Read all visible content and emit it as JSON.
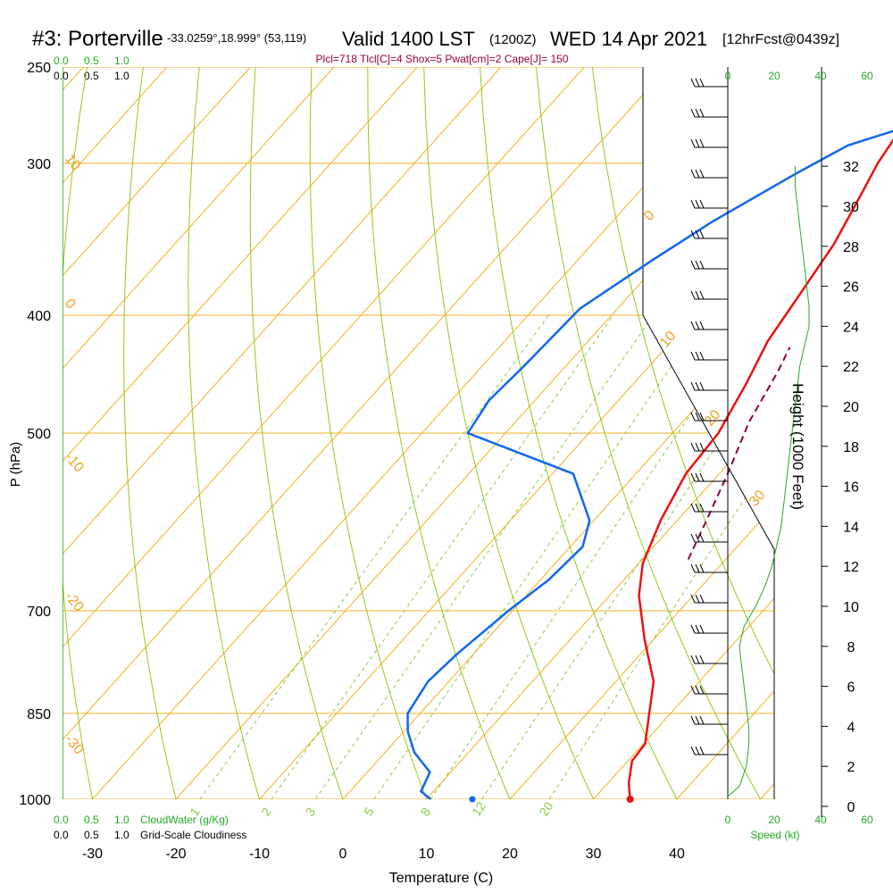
{
  "title": {
    "station": "#3: Porterville",
    "coords": "-33.0259°,18.999° (53,119)",
    "valid": "Valid 1400 LST",
    "utc": "(1200Z)",
    "date": "WED 14 Apr 2021",
    "forecast": "[12hrFcst@0439z]"
  },
  "indices": "Plcl=718 Tlcl[C]=4 Shox=5 Pwat[cm]=2 Cape[J]= 150",
  "colors": {
    "temp": "#ee1111",
    "dewpoint": "#1166ee",
    "parcel": "#880044",
    "isotherm": "#f0b020",
    "dry_adiabat": "#90c820",
    "mixing_ratio": "#88cc44",
    "green_text": "#22aa22",
    "indices": "#990033"
  },
  "chart_data": {
    "type": "line",
    "xlabel": "Temperature (C)",
    "ylabel": "P (hPa)",
    "y2label": "Height (1000 Feet)",
    "x_ticks": [
      "-30",
      "-20",
      "-10",
      "0",
      "10",
      "20",
      "30",
      "40"
    ],
    "y_ticks": [
      "250",
      "300",
      "400",
      "500",
      "700",
      "850",
      "1000"
    ],
    "height_ticks": [
      "0",
      "2",
      "4",
      "6",
      "8",
      "10",
      "12",
      "14",
      "16",
      "18",
      "20",
      "22",
      "24",
      "26",
      "28",
      "30",
      "32"
    ],
    "xlim": [
      -35,
      44
    ],
    "ylim": [
      1000,
      250
    ],
    "series": [
      {
        "key": "temperature",
        "values": [
          [
            34.4,
            1000
          ],
          [
            32.5,
            970
          ],
          [
            30.5,
            930
          ],
          [
            30.2,
            900
          ],
          [
            28,
            860
          ],
          [
            24.5,
            800
          ],
          [
            19,
            740
          ],
          [
            13.5,
            680
          ],
          [
            10.5,
            640
          ],
          [
            8,
            590
          ],
          [
            6,
            540
          ],
          [
            5.5,
            500
          ],
          [
            3.5,
            455
          ],
          [
            1.5,
            420
          ],
          [
            0.5,
            390
          ],
          [
            -1,
            350
          ],
          [
            -3,
            320
          ],
          [
            -4.5,
            300
          ],
          [
            -5.5,
            280
          ],
          [
            -6.5,
            262
          ]
        ]
      },
      {
        "key": "dewpoint",
        "values": [
          [
            10.5,
            1000
          ],
          [
            8.5,
            985
          ],
          [
            7.5,
            950
          ],
          [
            3.5,
            915
          ],
          [
            0.5,
            880
          ],
          [
            -1.5,
            850
          ],
          [
            -2.5,
            800
          ],
          [
            -2,
            760
          ],
          [
            -1,
            720
          ],
          [
            -0.5,
            700
          ],
          [
            1,
            660
          ],
          [
            1.5,
            620
          ],
          [
            -0.5,
            590
          ],
          [
            -7.5,
            540
          ],
          [
            -24.5,
            500
          ],
          [
            -25.5,
            470
          ],
          [
            -25,
            440
          ],
          [
            -24.5,
            395
          ],
          [
            -21,
            360
          ],
          [
            -18,
            335
          ],
          [
            -13,
            305
          ],
          [
            -10,
            290
          ],
          [
            -6,
            282
          ],
          [
            -4,
            262
          ]
        ]
      },
      {
        "key": "parcel",
        "values": [
          [
            15.5,
            635
          ],
          [
            13.5,
            590
          ],
          [
            11,
            540
          ],
          [
            8,
            490
          ],
          [
            6,
            445
          ],
          [
            4.8,
            425
          ]
        ]
      }
    ],
    "surface_dewpoint": 15.5,
    "isotherm_labels": [
      "10",
      "0",
      "-10",
      "-20",
      "-30"
    ],
    "isotherm_right_labels": [
      "0",
      "10",
      "20",
      "30"
    ],
    "mixing_ratio_labels": [
      "1",
      "2",
      "3",
      "5",
      "8",
      "12",
      "20"
    ],
    "mixing_ratio_values": [
      1,
      2,
      3,
      5,
      8,
      12,
      20
    ],
    "legend_top": {
      "cloud_water": [
        "0.0",
        "0.5",
        "1.0"
      ],
      "cloudiness": [
        "0.0",
        "0.5",
        "1.0"
      ]
    },
    "legend_bottom": {
      "cloud_water": [
        "0.0",
        "0.5",
        "1.0"
      ],
      "cloud_water_label": "CloudWater (g/Kg)",
      "cloudiness": [
        "0.0",
        "0.5",
        "1.0"
      ],
      "cloudiness_label": "Grid-Scale Cloudiness"
    },
    "speed_ticks_top": [
      "0",
      "20",
      "40",
      "60"
    ],
    "speed_ticks_bottom": [
      "0",
      "20",
      "40",
      "60"
    ],
    "speed_label": "Speed (kt)",
    "wind_speed_profile_kt": [
      [
        0.5,
        0
      ],
      [
        1,
        5
      ],
      [
        2,
        8
      ],
      [
        3,
        9
      ],
      [
        4,
        9
      ],
      [
        5,
        8
      ],
      [
        6,
        7
      ],
      [
        7,
        6
      ],
      [
        8,
        5
      ],
      [
        9,
        7
      ],
      [
        10,
        12
      ],
      [
        11,
        16
      ],
      [
        12,
        19
      ],
      [
        13,
        21
      ],
      [
        14,
        23
      ],
      [
        15,
        24
      ],
      [
        16,
        25
      ],
      [
        17,
        26
      ],
      [
        18,
        27
      ],
      [
        19,
        28
      ],
      [
        20,
        29
      ],
      [
        21,
        30
      ],
      [
        22,
        31
      ],
      [
        23,
        33
      ],
      [
        24,
        35
      ],
      [
        25,
        35
      ],
      [
        26,
        34
      ],
      [
        27,
        33
      ],
      [
        28,
        32
      ],
      [
        29,
        31
      ],
      [
        30,
        30
      ],
      [
        31,
        29
      ],
      [
        32,
        29
      ]
    ]
  }
}
